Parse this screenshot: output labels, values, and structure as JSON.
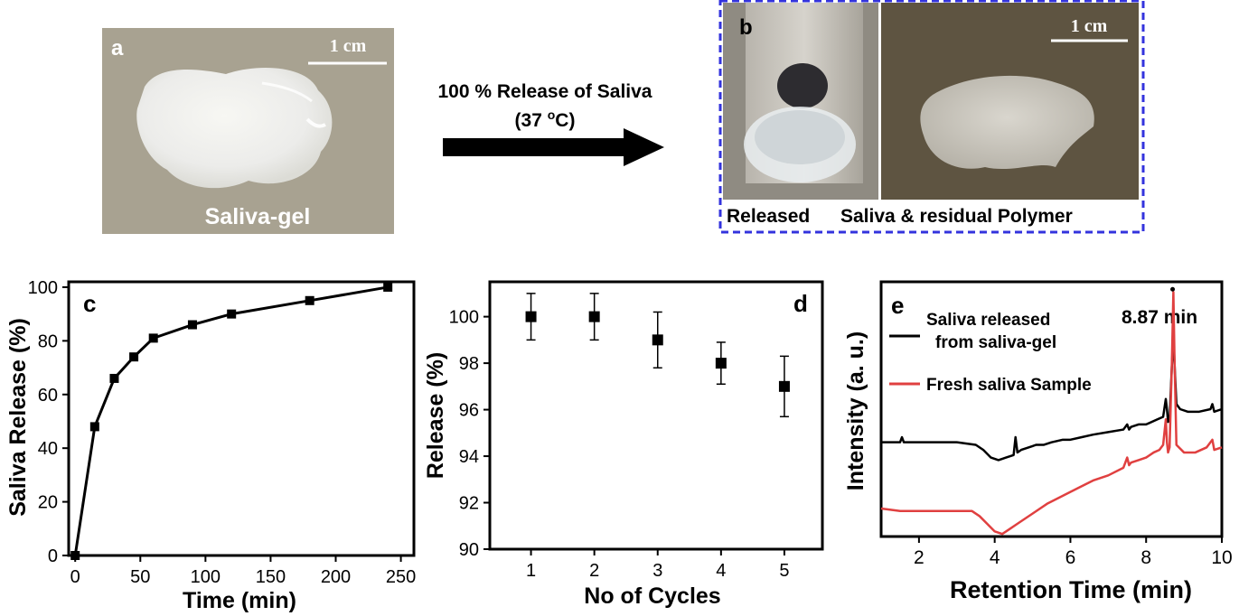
{
  "panel_a": {
    "letter": "a",
    "scale_label": "1 cm",
    "caption": "Saliva-gel"
  },
  "arrow": {
    "line1": "100 % Release of Saliva",
    "line2_main": "(37 ",
    "line2_sup": "o",
    "line2_end": "C)"
  },
  "panel_b": {
    "letter": "b",
    "scale_label": "1 cm",
    "caption_left": "Released",
    "caption_right": "Saliva & residual Polymer",
    "frame_color": "#3333dd"
  },
  "chart_data": [
    {
      "type": "line",
      "panel_letter": "c",
      "xlabel": "Time (min)",
      "ylabel": "Saliva Release (%)",
      "xlim": [
        -5,
        260
      ],
      "ylim": [
        0,
        102
      ],
      "xticks": [
        0,
        50,
        100,
        150,
        200,
        250
      ],
      "yticks": [
        0,
        20,
        40,
        60,
        80,
        100
      ],
      "series": [
        {
          "x": [
            0,
            15,
            30,
            45,
            60,
            90,
            120,
            180,
            240
          ],
          "y": [
            0,
            48,
            66,
            74,
            81,
            86,
            90,
            95,
            100
          ],
          "color": "#000000"
        }
      ]
    },
    {
      "type": "scatter",
      "panel_letter": "d",
      "xlabel": "No of Cycles",
      "ylabel": "Release (%)",
      "xlim": [
        0.35,
        5.6
      ],
      "ylim": [
        90,
        101.5
      ],
      "xticks": [
        1,
        2,
        3,
        4,
        5
      ],
      "yticks": [
        90,
        92,
        94,
        96,
        98,
        100
      ],
      "series": [
        {
          "x": [
            1,
            2,
            3,
            4,
            5
          ],
          "y": [
            100,
            100,
            99,
            98,
            97
          ],
          "err": [
            1.0,
            1.0,
            1.2,
            0.9,
            1.3
          ],
          "color": "#000000"
        }
      ]
    },
    {
      "type": "line",
      "panel_letter": "e",
      "xlabel": "Retention Time (min)",
      "ylabel": "Intensity (a. u.)",
      "xlim": [
        1,
        10
      ],
      "ylim": [
        0,
        100
      ],
      "xticks": [
        2,
        4,
        6,
        8,
        10
      ],
      "annotation": "8.87 min",
      "annotation_x": 8.7,
      "y_ticklabels_shown": false,
      "series": [
        {
          "name": "Saliva released from saliva-gel",
          "legend_line1": "Saliva released",
          "legend_line2": "from saliva-gel",
          "color": "#000000",
          "x": [
            1.0,
            1.3,
            1.5,
            1.55,
            1.6,
            1.8,
            2.0,
            2.5,
            3.0,
            3.5,
            3.7,
            3.9,
            4.1,
            4.3,
            4.5,
            4.55,
            4.6,
            4.7,
            4.9,
            5.1,
            5.3,
            5.5,
            5.8,
            6.0,
            6.3,
            6.6,
            7.0,
            7.4,
            7.5,
            7.55,
            7.6,
            7.8,
            8.0,
            8.3,
            8.45,
            8.52,
            8.55,
            8.58,
            8.62,
            8.68,
            8.72,
            8.75,
            8.8,
            8.9,
            9.1,
            9.4,
            9.7,
            9.75,
            9.8,
            10.0
          ],
          "y": [
            37,
            37,
            37,
            39,
            37,
            37,
            37,
            37,
            37,
            36,
            34,
            31,
            30,
            31,
            32,
            39,
            33,
            34,
            35,
            36,
            36,
            37,
            38,
            38,
            39,
            40,
            41,
            42,
            44,
            42,
            43,
            44,
            44,
            46,
            47,
            54,
            50,
            45,
            46,
            67,
            80,
            68,
            52,
            50,
            49,
            49,
            50,
            52,
            49,
            50
          ]
        },
        {
          "name": "Fresh saliva Sample",
          "color": "#e04040",
          "x": [
            1.0,
            1.5,
            2.0,
            2.5,
            3.0,
            3.4,
            3.6,
            3.8,
            4.0,
            4.2,
            4.4,
            4.6,
            5.0,
            5.4,
            5.8,
            6.2,
            6.6,
            7.0,
            7.4,
            7.5,
            7.55,
            7.6,
            7.8,
            8.0,
            8.2,
            8.35,
            8.45,
            8.52,
            8.55,
            8.58,
            8.62,
            8.68,
            8.72,
            8.75,
            8.8,
            9.0,
            9.3,
            9.6,
            9.75,
            9.8,
            10.0
          ],
          "y": [
            11,
            10,
            10,
            10,
            10,
            10,
            8,
            5,
            2,
            1,
            3,
            5,
            9,
            13,
            16,
            19,
            22,
            24,
            27,
            31,
            28,
            29,
            30,
            31,
            33,
            34,
            36,
            46,
            37,
            33,
            35,
            68,
            96,
            70,
            36,
            33,
            33,
            35,
            38,
            34,
            35
          ]
        }
      ]
    }
  ]
}
